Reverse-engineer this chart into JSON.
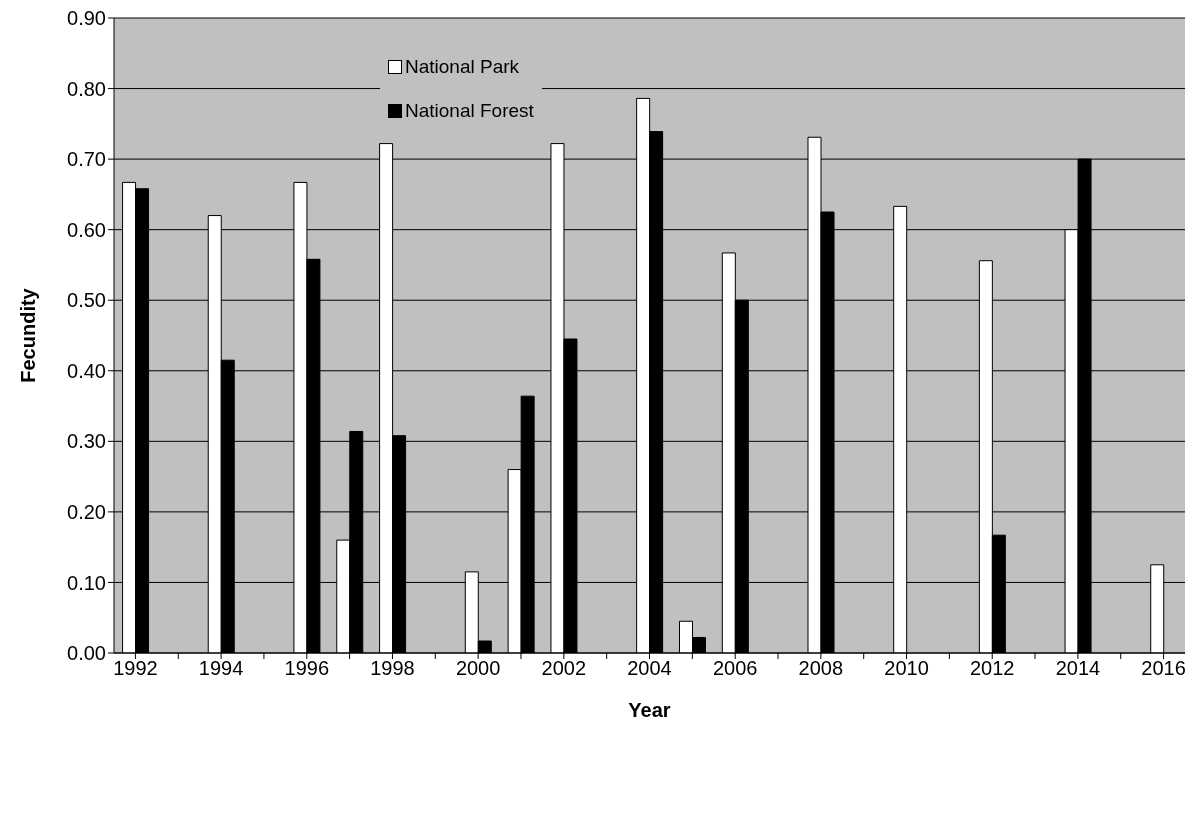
{
  "chart_data": {
    "type": "bar",
    "xlabel": "Year",
    "ylabel": "Fecundity",
    "categories": [
      "1992",
      null,
      "1994",
      null,
      "1996",
      null,
      "1998",
      null,
      "2000",
      null,
      "2002",
      null,
      "2004",
      null,
      "2006",
      null,
      "2008",
      null,
      "2010",
      null,
      "2012",
      null,
      "2014",
      null,
      "2016"
    ],
    "series": [
      {
        "name": "National Park",
        "color": "#ffffff",
        "values": [
          0.667,
          null,
          0.62,
          null,
          0.667,
          0.16,
          0.722,
          null,
          0.115,
          0.26,
          0.722,
          null,
          0.786,
          0.045,
          0.567,
          null,
          0.731,
          null,
          0.633,
          null,
          0.556,
          null,
          0.6,
          null,
          0.125
        ]
      },
      {
        "name": "National Forest",
        "color": "#000000",
        "values": [
          0.658,
          null,
          0.415,
          null,
          0.558,
          0.314,
          0.308,
          null,
          0.017,
          0.364,
          0.445,
          null,
          0.739,
          0.022,
          0.5,
          null,
          0.625,
          null,
          null,
          null,
          0.167,
          null,
          0.7,
          null,
          null
        ]
      }
    ],
    "ylim": [
      0,
      0.9
    ],
    "yticks": [
      {
        "value": 0,
        "label": "0.00"
      },
      {
        "value": 0.1,
        "label": "0.10"
      },
      {
        "value": 0.2,
        "label": "0.20"
      },
      {
        "value": 0.3,
        "label": "0.30"
      },
      {
        "value": 0.4,
        "label": "0.40"
      },
      {
        "value": 0.5,
        "label": "0.50"
      },
      {
        "value": 0.6,
        "label": "0.60"
      },
      {
        "value": 0.7,
        "label": "0.70"
      },
      {
        "value": 0.8,
        "label": "0.80"
      },
      {
        "value": 0.9,
        "label": "0.90"
      }
    ],
    "grid": "y",
    "legend": "top left"
  }
}
